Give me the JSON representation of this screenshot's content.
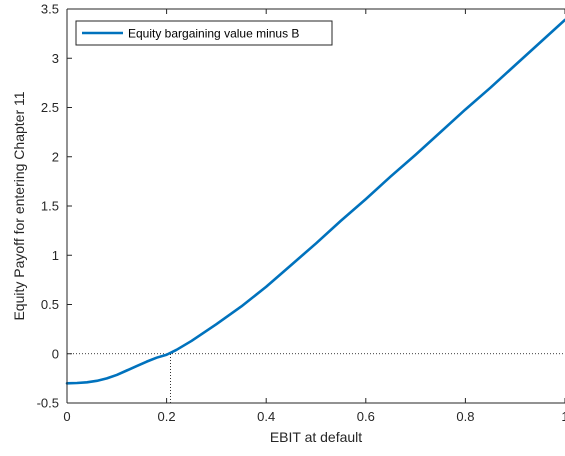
{
  "chart_data": {
    "type": "line",
    "title": "",
    "xlabel": "EBIT at default",
    "ylabel": "Equity Payoff for entering Chapter 11",
    "xlim": [
      0,
      1
    ],
    "ylim": [
      -0.5,
      3.5
    ],
    "x_ticks": [
      "0",
      "0.2",
      "0.4",
      "0.6",
      "0.8",
      "1"
    ],
    "y_ticks": [
      "-0.5",
      "0",
      "0.5",
      "1",
      "1.5",
      "2",
      "2.5",
      "3",
      "3.5"
    ],
    "grid": false,
    "legend_position": "top-left",
    "series": [
      {
        "name": "Equity bargaining value minus B",
        "color": "#0072BD",
        "x": [
          0,
          0.02,
          0.04,
          0.06,
          0.08,
          0.1,
          0.12,
          0.14,
          0.16,
          0.18,
          0.2,
          0.22,
          0.25,
          0.3,
          0.35,
          0.4,
          0.45,
          0.5,
          0.55,
          0.6,
          0.65,
          0.7,
          0.75,
          0.8,
          0.85,
          0.9,
          0.95,
          1.0
        ],
        "y": [
          -0.3,
          -0.297,
          -0.29,
          -0.275,
          -0.25,
          -0.215,
          -0.17,
          -0.125,
          -0.08,
          -0.04,
          -0.01,
          0.04,
          0.13,
          0.3,
          0.48,
          0.68,
          0.9,
          1.12,
          1.35,
          1.57,
          1.8,
          2.02,
          2.25,
          2.48,
          2.7,
          2.93,
          3.16,
          3.39
        ]
      }
    ],
    "reference_lines": [
      {
        "orientation": "horizontal",
        "value": 0,
        "style": "dotted",
        "color": "#000000"
      },
      {
        "orientation": "vertical",
        "value": 0.208,
        "from": -0.5,
        "to": 0,
        "style": "dotted",
        "color": "#000000"
      }
    ]
  }
}
